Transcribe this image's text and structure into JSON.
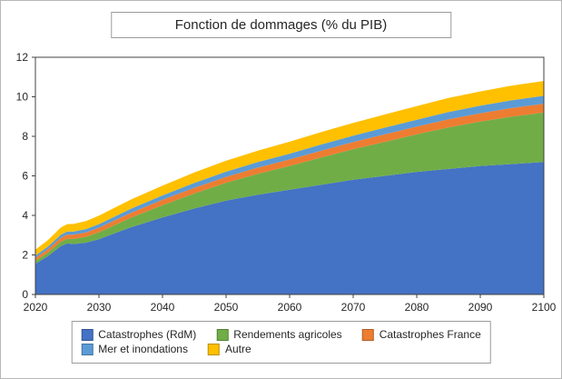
{
  "chart_data": {
    "type": "area",
    "stacked": true,
    "title": "Fonction de dommages (% du PIB)",
    "xlabel": "",
    "ylabel": "",
    "xlim": [
      2020,
      2100
    ],
    "ylim": [
      0,
      12
    ],
    "xticks": [
      2020,
      2030,
      2040,
      2050,
      2060,
      2070,
      2080,
      2090,
      2100
    ],
    "yticks": [
      0,
      2,
      4,
      6,
      8,
      10,
      12
    ],
    "grid": false,
    "legend_position": "bottom",
    "x": [
      2020,
      2022,
      2024,
      2025,
      2026,
      2028,
      2030,
      2035,
      2040,
      2045,
      2050,
      2055,
      2060,
      2065,
      2070,
      2075,
      2080,
      2085,
      2090,
      2095,
      2100
    ],
    "series": [
      {
        "name": "Catastrophes (RdM)",
        "color": "#4472C4",
        "values": [
          1.55,
          1.95,
          2.45,
          2.58,
          2.55,
          2.62,
          2.8,
          3.4,
          3.9,
          4.35,
          4.75,
          5.05,
          5.3,
          5.55,
          5.8,
          6.0,
          6.2,
          6.35,
          6.5,
          6.6,
          6.7
        ]
      },
      {
        "name": "Rendements agricoles",
        "color": "#70AD47",
        "values": [
          0.15,
          0.18,
          0.22,
          0.24,
          0.26,
          0.3,
          0.35,
          0.48,
          0.62,
          0.76,
          0.9,
          1.05,
          1.2,
          1.38,
          1.55,
          1.72,
          1.9,
          2.1,
          2.25,
          2.4,
          2.5
        ]
      },
      {
        "name": "Catastrophes France",
        "color": "#ED7D31",
        "values": [
          0.15,
          0.17,
          0.2,
          0.21,
          0.21,
          0.22,
          0.23,
          0.25,
          0.27,
          0.29,
          0.3,
          0.32,
          0.33,
          0.35,
          0.36,
          0.38,
          0.39,
          0.41,
          0.42,
          0.44,
          0.45
        ]
      },
      {
        "name": "Mer et inondations",
        "color": "#5B9BD5",
        "values": [
          0.12,
          0.13,
          0.15,
          0.15,
          0.16,
          0.17,
          0.18,
          0.2,
          0.22,
          0.24,
          0.26,
          0.28,
          0.29,
          0.31,
          0.32,
          0.34,
          0.35,
          0.37,
          0.38,
          0.39,
          0.4
        ]
      },
      {
        "name": "Autre",
        "color": "#FFC000",
        "values": [
          0.3,
          0.33,
          0.37,
          0.38,
          0.39,
          0.41,
          0.43,
          0.47,
          0.5,
          0.53,
          0.56,
          0.58,
          0.61,
          0.63,
          0.65,
          0.67,
          0.69,
          0.71,
          0.72,
          0.74,
          0.75
        ]
      }
    ],
    "legend_rows": [
      [
        0,
        1,
        2
      ],
      [
        3,
        4
      ]
    ]
  }
}
